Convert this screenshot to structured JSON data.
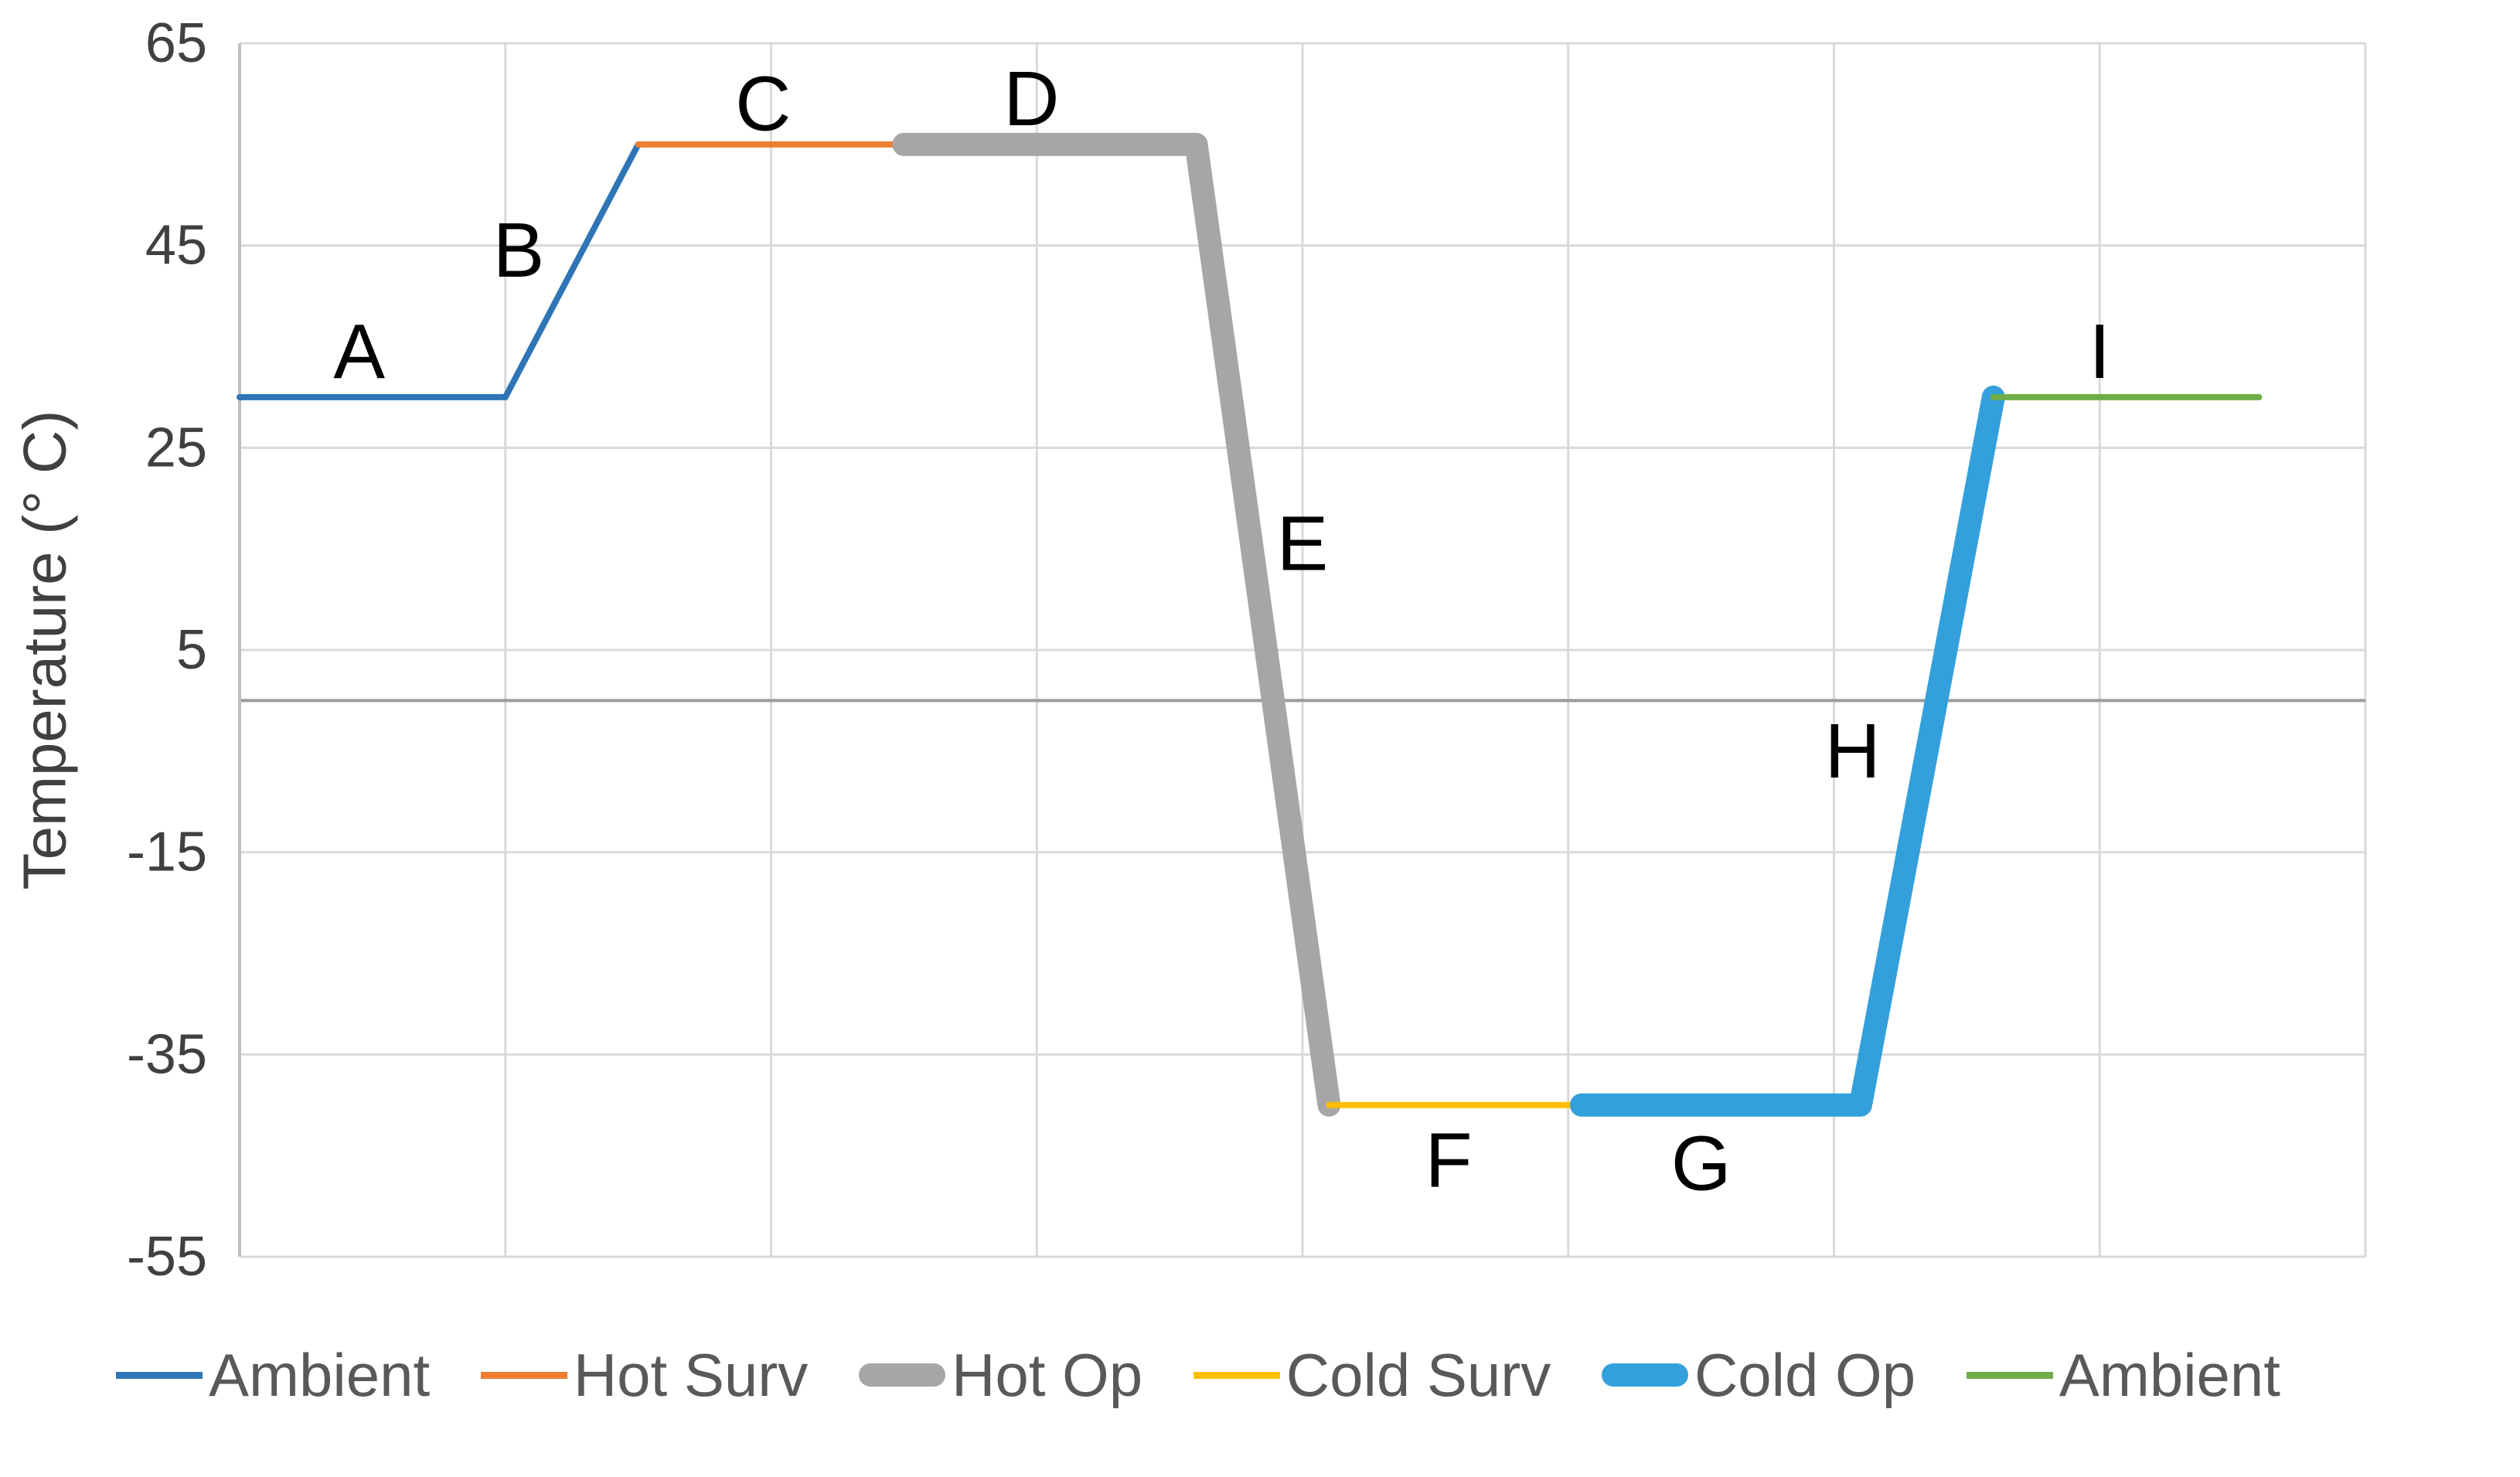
{
  "y_axis": {
    "label": "Temperature (° C)",
    "ticks": [
      65,
      45,
      25,
      5,
      -15,
      -35,
      -55
    ],
    "min": -55,
    "max": 65
  },
  "x_axis": {
    "min": 0,
    "max": 8,
    "gridline_step": 1
  },
  "chart_data": {
    "type": "line",
    "title": "",
    "xlabel": "",
    "ylabel": "Temperature (° C)",
    "ylim": [
      -55,
      65
    ],
    "xlim": [
      0,
      8
    ],
    "grid": true,
    "legend_position": "bottom",
    "series": [
      {
        "name": "Ambient",
        "color": "#2E75B6",
        "width": "thin",
        "points": [
          [
            0,
            30
          ],
          [
            1,
            30
          ],
          [
            1.5,
            55
          ]
        ]
      },
      {
        "name": "Hot Surv",
        "color": "#ED7D31",
        "width": "thin",
        "points": [
          [
            1.5,
            55
          ],
          [
            2.5,
            55
          ]
        ]
      },
      {
        "name": "Hot Op",
        "color": "#A6A6A6",
        "width": "thick",
        "points": [
          [
            2.5,
            55
          ],
          [
            3.6,
            55
          ],
          [
            4.1,
            -40
          ]
        ]
      },
      {
        "name": "Cold Surv",
        "color": "#FFC000",
        "width": "thin",
        "points": [
          [
            4.1,
            -40
          ],
          [
            5.05,
            -40
          ]
        ]
      },
      {
        "name": "Cold Op",
        "color": "#33A0DC",
        "width": "thick",
        "points": [
          [
            5.05,
            -40
          ],
          [
            6.1,
            -40
          ],
          [
            6.6,
            30
          ]
        ]
      },
      {
        "name": "Ambient",
        "color": "#70AD47",
        "width": "thin",
        "points": [
          [
            6.6,
            30
          ],
          [
            7.6,
            30
          ]
        ]
      }
    ],
    "segment_labels": [
      {
        "text": "A",
        "x": 0.45,
        "y": 34.5
      },
      {
        "text": "B",
        "x": 1.05,
        "y": 44.5
      },
      {
        "text": "C",
        "x": 1.97,
        "y": 59.0
      },
      {
        "text": "D",
        "x": 2.98,
        "y": 59.5
      },
      {
        "text": "E",
        "x": 4.0,
        "y": 15.5
      },
      {
        "text": "F",
        "x": 4.55,
        "y": -45.5
      },
      {
        "text": "G",
        "x": 5.5,
        "y": -45.8
      },
      {
        "text": "H",
        "x": 6.07,
        "y": -5.0
      },
      {
        "text": "I",
        "x": 7.0,
        "y": 34.5
      }
    ],
    "legend": [
      {
        "label": "Ambient",
        "color": "#2E75B6",
        "thick": false
      },
      {
        "label": "Hot Surv",
        "color": "#ED7D31",
        "thick": false
      },
      {
        "label": "Hot Op",
        "color": "#A6A6A6",
        "thick": true
      },
      {
        "label": "Cold Surv",
        "color": "#FFC000",
        "thick": false
      },
      {
        "label": "Cold Op",
        "color": "#33A0DC",
        "thick": true
      },
      {
        "label": "Ambient",
        "color": "#70AD47",
        "thick": false
      }
    ]
  },
  "colors": {
    "gridline": "#D9D9D9",
    "axis_line": "#BFBFBF",
    "zero_line": "#9B9B9B",
    "tick_label": "#404040",
    "axis_title": "#404040",
    "legend_text": "#595959",
    "label_text": "#000000",
    "background": "#FFFFFF"
  }
}
